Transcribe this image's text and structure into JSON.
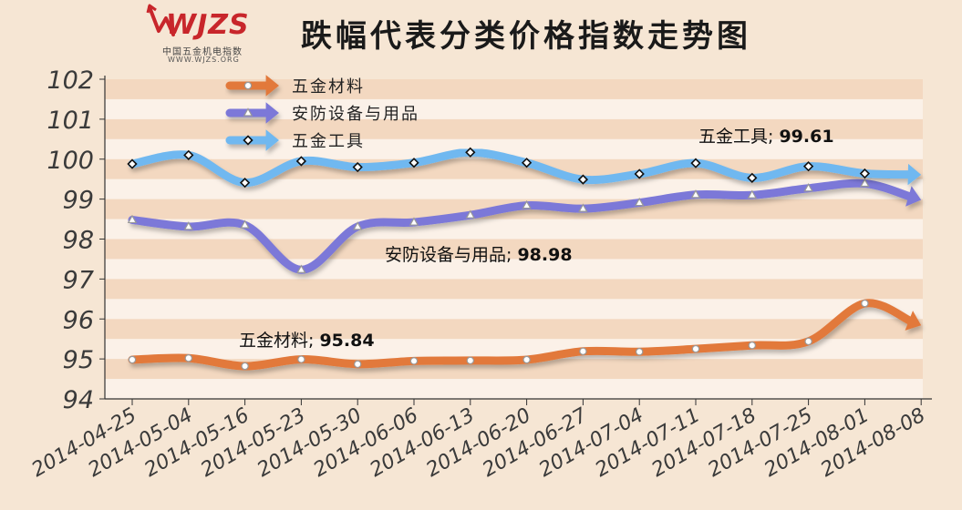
{
  "logo": {
    "mark": "WJZS",
    "subtitle_cn": "中国五金机电指数",
    "url": "WWW.WJZS.ORG"
  },
  "chart_data": {
    "type": "line",
    "title": "跌幅代表分类价格指数走势图",
    "xlabel": "",
    "ylabel": "",
    "ylim": [
      94,
      102
    ],
    "yticks": [
      94,
      95,
      96,
      97,
      98,
      99,
      100,
      101,
      102
    ],
    "grid": "horizontal bands",
    "legend_position": "top-left",
    "categories": [
      "2014-04-25",
      "2014-05-04",
      "2014-05-16",
      "2014-05-23",
      "2014-05-30",
      "2014-06-06",
      "2014-06-13",
      "2014-06-20",
      "2014-06-27",
      "2014-07-04",
      "2014-07-11",
      "2014-07-18",
      "2014-07-25",
      "2014-08-01",
      "2014-08-08"
    ],
    "series": [
      {
        "name": "五金材料",
        "color": "#e2793b",
        "marker": "circle",
        "values": [
          94.98,
          95.02,
          94.82,
          94.99,
          94.87,
          94.95,
          94.96,
          94.98,
          95.19,
          95.18,
          95.25,
          95.34,
          95.44,
          96.39,
          95.84
        ],
        "end_label": "五金材料; 95.84"
      },
      {
        "name": "安防设备与用品",
        "color": "#7b78d8",
        "marker": "triangle",
        "values": [
          98.48,
          98.31,
          98.35,
          97.23,
          98.31,
          98.42,
          98.6,
          98.84,
          98.76,
          98.91,
          99.11,
          99.1,
          99.27,
          99.39,
          98.98
        ],
        "end_label": "安防设备与用品; 98.98"
      },
      {
        "name": "五金工具",
        "color": "#6fb8f0",
        "marker": "diamond",
        "values": [
          99.88,
          100.1,
          99.41,
          99.95,
          99.8,
          99.91,
          100.17,
          99.91,
          99.49,
          99.63,
          99.9,
          99.53,
          99.82,
          99.64,
          99.61
        ],
        "end_label": "五金工具; 99.61"
      }
    ]
  }
}
